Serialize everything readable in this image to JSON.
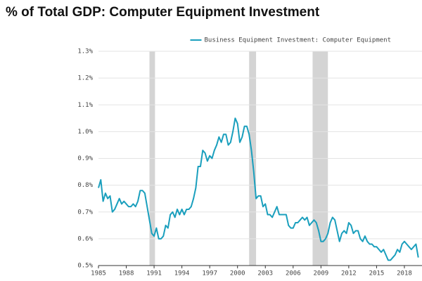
{
  "chart_data": {
    "type": "line",
    "title": "% of Total GDP: Computer Equipment Investment",
    "x": [
      1985,
      1985.25,
      1985.5,
      1985.75,
      1986,
      1986.25,
      1986.5,
      1986.75,
      1987,
      1987.25,
      1987.5,
      1987.75,
      1988,
      1988.25,
      1988.5,
      1988.75,
      1989,
      1989.25,
      1989.5,
      1989.75,
      1990,
      1990.25,
      1990.5,
      1990.75,
      1991,
      1991.25,
      1991.5,
      1991.75,
      1992,
      1992.25,
      1992.5,
      1992.75,
      1993,
      1993.25,
      1993.5,
      1993.75,
      1994,
      1994.25,
      1994.5,
      1994.75,
      1995,
      1995.25,
      1995.5,
      1995.75,
      1996,
      1996.25,
      1996.5,
      1996.75,
      1997,
      1997.25,
      1997.5,
      1997.75,
      1998,
      1998.25,
      1998.5,
      1998.75,
      1999,
      1999.25,
      1999.5,
      1999.75,
      2000,
      2000.25,
      2000.5,
      2000.75,
      2001,
      2001.25,
      2001.5,
      2001.75,
      2002,
      2002.25,
      2002.5,
      2002.75,
      2003,
      2003.25,
      2003.5,
      2003.75,
      2004,
      2004.25,
      2004.5,
      2004.75,
      2005,
      2005.25,
      2005.5,
      2005.75,
      2006,
      2006.25,
      2006.5,
      2006.75,
      2007,
      2007.25,
      2007.5,
      2007.75,
      2008,
      2008.25,
      2008.5,
      2008.75,
      2009,
      2009.25,
      2009.5,
      2009.75,
      2010,
      2010.25,
      2010.5,
      2010.75,
      2011,
      2011.25,
      2011.5,
      2011.75,
      2012,
      2012.25,
      2012.5,
      2012.75,
      2013,
      2013.25,
      2013.5,
      2013.75,
      2014,
      2014.25,
      2014.5,
      2014.75,
      2015,
      2015.25,
      2015.5,
      2015.75,
      2016,
      2016.25,
      2016.5,
      2016.75,
      2017,
      2017.25,
      2017.5,
      2017.75,
      2018,
      2018.25,
      2018.5,
      2018.75,
      2019,
      2019.25,
      2019.5
    ],
    "series": [
      {
        "name": "Business Equipment Investment: Computer Equipment",
        "color": "#1a9fbd",
        "values": [
          0.79,
          0.82,
          0.74,
          0.77,
          0.75,
          0.76,
          0.7,
          0.71,
          0.73,
          0.75,
          0.73,
          0.74,
          0.73,
          0.72,
          0.72,
          0.73,
          0.72,
          0.74,
          0.78,
          0.78,
          0.77,
          0.72,
          0.67,
          0.62,
          0.61,
          0.64,
          0.6,
          0.6,
          0.61,
          0.65,
          0.64,
          0.69,
          0.7,
          0.68,
          0.71,
          0.69,
          0.71,
          0.69,
          0.71,
          0.71,
          0.72,
          0.75,
          0.79,
          0.87,
          0.87,
          0.93,
          0.92,
          0.89,
          0.91,
          0.9,
          0.93,
          0.95,
          0.98,
          0.96,
          0.99,
          0.99,
          0.95,
          0.96,
          1.0,
          1.05,
          1.03,
          0.96,
          0.98,
          1.02,
          1.02,
          0.99,
          0.93,
          0.85,
          0.75,
          0.76,
          0.76,
          0.72,
          0.73,
          0.69,
          0.69,
          0.68,
          0.7,
          0.72,
          0.69,
          0.69,
          0.69,
          0.69,
          0.65,
          0.64,
          0.64,
          0.66,
          0.66,
          0.67,
          0.68,
          0.67,
          0.68,
          0.65,
          0.66,
          0.67,
          0.66,
          0.63,
          0.59,
          0.59,
          0.6,
          0.62,
          0.66,
          0.68,
          0.67,
          0.63,
          0.59,
          0.62,
          0.63,
          0.62,
          0.66,
          0.65,
          0.62,
          0.63,
          0.63,
          0.6,
          0.59,
          0.61,
          0.59,
          0.58,
          0.58,
          0.57,
          0.57,
          0.56,
          0.55,
          0.56,
          0.54,
          0.52,
          0.52,
          0.53,
          0.54,
          0.56,
          0.55,
          0.58,
          0.59,
          0.58,
          0.57,
          0.56,
          0.57,
          0.58,
          0.53
        ]
      }
    ],
    "recessions": [
      [
        1990.5,
        1991.1
      ],
      [
        2001.25,
        2002.0
      ],
      [
        2008.1,
        2009.75
      ]
    ],
    "xlim": [
      1985,
      2019.9
    ],
    "xticks": [
      1985,
      1988,
      1991,
      1994,
      1997,
      2000,
      2003,
      2006,
      2009,
      2012,
      2015,
      2018
    ],
    "ylim": [
      0.5,
      1.3
    ],
    "yticks": [
      {
        "value": 0.5,
        "label": "0.5%"
      },
      {
        "value": 0.6,
        "label": "0.6%"
      },
      {
        "value": 0.7,
        "label": "0.7%"
      },
      {
        "value": 0.8,
        "label": "0.8%"
      },
      {
        "value": 0.9,
        "label": "0.9%"
      },
      {
        "value": 1.0,
        "label": "1.0%"
      },
      {
        "value": 1.1,
        "label": "1.1%"
      },
      {
        "value": 1.2,
        "label": "1.2%"
      },
      {
        "value": 1.3,
        "label": "1.3%"
      }
    ],
    "grid": true,
    "legend": "top-right"
  }
}
